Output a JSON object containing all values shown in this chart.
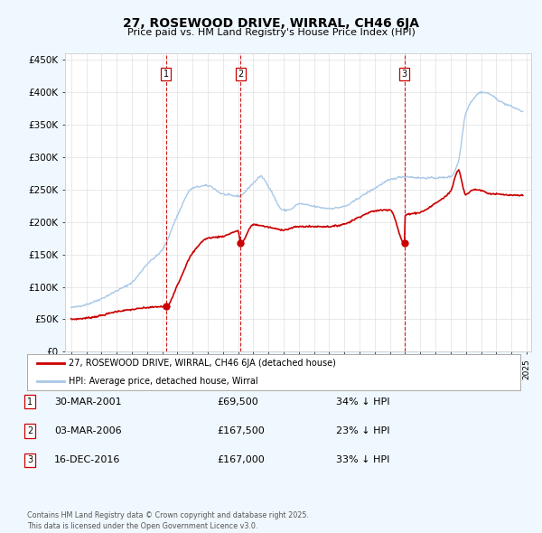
{
  "title": "27, ROSEWOOD DRIVE, WIRRAL, CH46 6JA",
  "subtitle": "Price paid vs. HM Land Registry's House Price Index (HPI)",
  "ylim": [
    0,
    460000
  ],
  "yticks": [
    0,
    50000,
    100000,
    150000,
    200000,
    250000,
    300000,
    350000,
    400000,
    450000
  ],
  "ytick_labels": [
    "£0",
    "£50K",
    "£100K",
    "£150K",
    "£200K",
    "£250K",
    "£300K",
    "£350K",
    "£400K",
    "£450K"
  ],
  "hpi_color": "#a8c8e8",
  "price_color": "#cc0000",
  "vline_color": "#cc0000",
  "background_color": "#f0f8ff",
  "plot_bg_color": "#ffffff",
  "sale1_year": 2001.25,
  "sale2_year": 2006.17,
  "sale3_year": 2016.96,
  "sale1_price": 69500,
  "sale2_price": 167500,
  "sale3_price": 167000,
  "legend_label_price": "27, ROSEWOOD DRIVE, WIRRAL, CH46 6JA (detached house)",
  "legend_label_hpi": "HPI: Average price, detached house, Wirral",
  "table_entries": [
    {
      "num": 1,
      "date": "30-MAR-2001",
      "price": "£69,500",
      "note": "34% ↓ HPI"
    },
    {
      "num": 2,
      "date": "03-MAR-2006",
      "price": "£167,500",
      "note": "23% ↓ HPI"
    },
    {
      "num": 3,
      "date": "16-DEC-2016",
      "price": "£167,000",
      "note": "33% ↓ HPI"
    }
  ],
  "footer": "Contains HM Land Registry data © Crown copyright and database right 2025.\nThis data is licensed under the Open Government Licence v3.0.",
  "hpi_knots_x": [
    1995,
    1996,
    1997,
    1998,
    1999,
    2000,
    2001,
    2002,
    2003,
    2004,
    2005,
    2006,
    2007,
    2007.5,
    2008,
    2009,
    2009.5,
    2010,
    2011,
    2012,
    2013,
    2014,
    2015,
    2016,
    2017,
    2018,
    2019,
    2020,
    2020.5,
    2021,
    2021.5,
    2022,
    2022.5,
    2023,
    2023.5,
    2024,
    2024.75
  ],
  "hpi_knots_y": [
    68000,
    73000,
    82000,
    94000,
    107000,
    135000,
    157000,
    210000,
    252000,
    256000,
    243000,
    240000,
    260000,
    270000,
    255000,
    218000,
    220000,
    228000,
    224000,
    221000,
    224000,
    238000,
    252000,
    265000,
    270000,
    268000,
    268000,
    270000,
    293000,
    368000,
    390000,
    400000,
    398000,
    390000,
    383000,
    378000,
    370000
  ],
  "price_knots_x": [
    1995,
    1996,
    1997,
    1998,
    1999,
    2000,
    2001,
    2001.25,
    2002,
    2003,
    2004,
    2005,
    2006,
    2006.17,
    2007,
    2008,
    2009,
    2010,
    2011,
    2012,
    2013,
    2014,
    2015,
    2016,
    2016.96,
    2017,
    2018,
    2019,
    2020,
    2020.5,
    2021,
    2021.5,
    2022,
    2022.5,
    2023,
    2023.5,
    2024,
    2024.75
  ],
  "price_knots_y": [
    50000,
    52000,
    56000,
    62000,
    65000,
    68000,
    69500,
    69500,
    103000,
    152000,
    175000,
    178000,
    186000,
    167500,
    196000,
    192000,
    188000,
    193000,
    193000,
    193000,
    197000,
    208000,
    217000,
    219000,
    167000,
    210000,
    215000,
    229000,
    248000,
    280000,
    242000,
    250000,
    249000,
    244000,
    243000,
    242000,
    241000,
    241000
  ]
}
